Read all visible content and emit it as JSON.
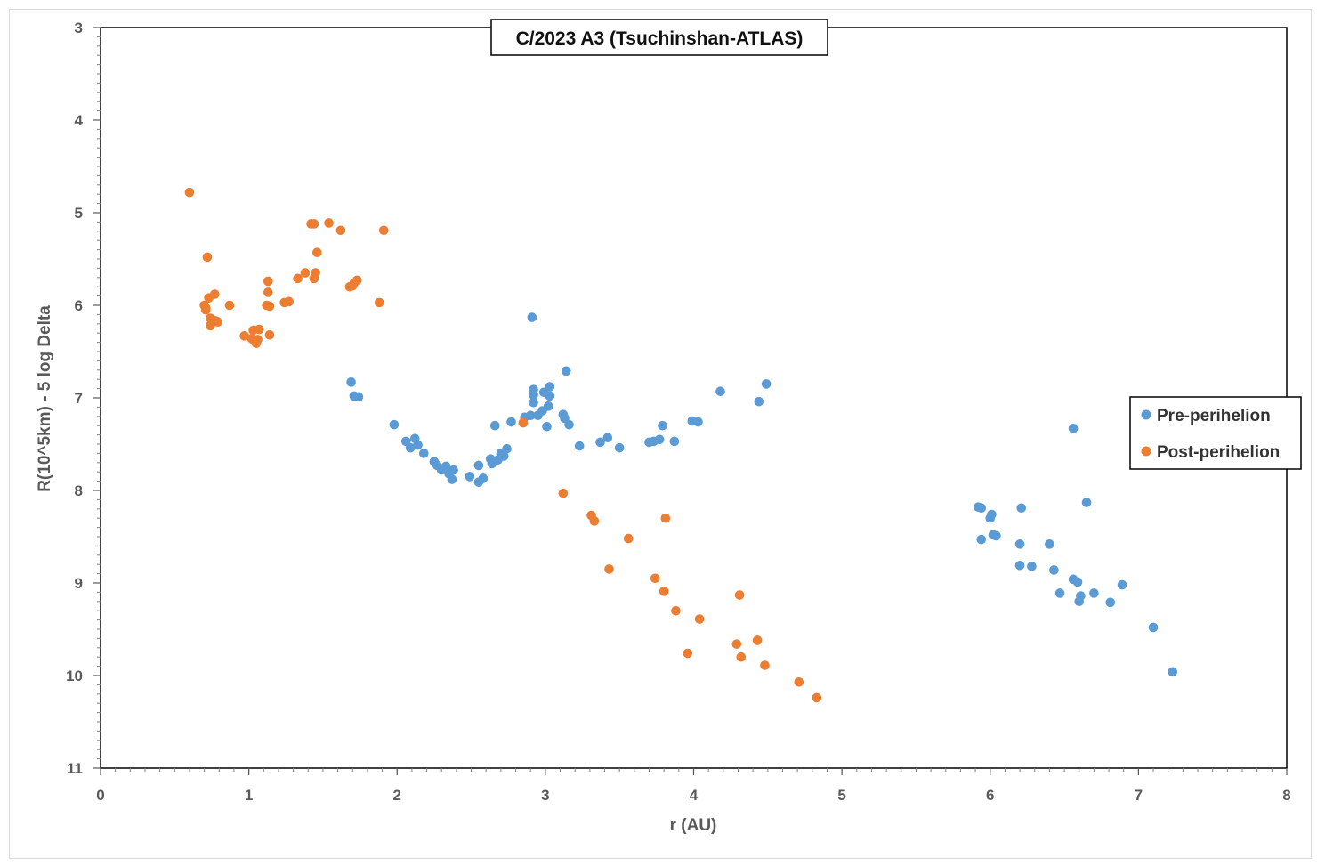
{
  "chart_data": {
    "type": "scatter",
    "title": "C/2023 A3 (Tsuchinshan-ATLAS)",
    "xlabel": "r (AU)",
    "ylabel": "R(10^5km) - 5 log Delta",
    "xlim": [
      0,
      8
    ],
    "ylim": [
      3,
      11
    ],
    "y_reversed": true,
    "x_ticks": [
      "0",
      "1",
      "2",
      "3",
      "4",
      "5",
      "6",
      "7",
      "8"
    ],
    "y_ticks": [
      "3",
      "4",
      "5",
      "6",
      "7",
      "8",
      "9",
      "10",
      "11"
    ],
    "legend_position": "right",
    "series": [
      {
        "name": "Pre-perihelion",
        "color": "#5b9bd5",
        "points": [
          [
            1.69,
            6.83
          ],
          [
            1.71,
            6.98
          ],
          [
            1.74,
            6.99
          ],
          [
            1.98,
            7.29
          ],
          [
            2.06,
            7.47
          ],
          [
            2.09,
            7.54
          ],
          [
            2.12,
            7.44
          ],
          [
            2.14,
            7.51
          ],
          [
            2.18,
            7.6
          ],
          [
            2.25,
            7.69
          ],
          [
            2.27,
            7.73
          ],
          [
            2.3,
            7.78
          ],
          [
            2.33,
            7.74
          ],
          [
            2.35,
            7.82
          ],
          [
            2.37,
            7.88
          ],
          [
            2.38,
            7.78
          ],
          [
            2.49,
            7.85
          ],
          [
            2.55,
            7.73
          ],
          [
            2.55,
            7.91
          ],
          [
            2.58,
            7.87
          ],
          [
            2.63,
            7.66
          ],
          [
            2.64,
            7.71
          ],
          [
            2.66,
            7.3
          ],
          [
            2.68,
            7.67
          ],
          [
            2.7,
            7.6
          ],
          [
            2.72,
            7.63
          ],
          [
            2.74,
            7.55
          ],
          [
            2.77,
            7.26
          ],
          [
            2.86,
            7.21
          ],
          [
            2.9,
            7.19
          ],
          [
            2.91,
            6.13
          ],
          [
            2.92,
            6.91
          ],
          [
            2.92,
            6.97
          ],
          [
            2.92,
            7.05
          ],
          [
            2.95,
            7.19
          ],
          [
            2.98,
            7.14
          ],
          [
            2.99,
            6.94
          ],
          [
            3.01,
            7.31
          ],
          [
            3.02,
            7.09
          ],
          [
            3.03,
            6.88
          ],
          [
            3.03,
            6.98
          ],
          [
            3.12,
            7.18
          ],
          [
            3.13,
            7.22
          ],
          [
            3.14,
            6.71
          ],
          [
            3.16,
            7.29
          ],
          [
            3.23,
            7.52
          ],
          [
            3.37,
            7.48
          ],
          [
            3.42,
            7.43
          ],
          [
            3.5,
            7.54
          ],
          [
            3.7,
            7.48
          ],
          [
            3.73,
            7.47
          ],
          [
            3.77,
            7.45
          ],
          [
            3.79,
            7.3
          ],
          [
            3.87,
            7.47
          ],
          [
            3.99,
            7.25
          ],
          [
            4.03,
            7.26
          ],
          [
            4.18,
            6.93
          ],
          [
            4.44,
            7.04
          ],
          [
            4.49,
            6.85
          ],
          [
            5.92,
            8.18
          ],
          [
            5.94,
            8.19
          ],
          [
            5.94,
            8.53
          ],
          [
            6.0,
            8.3
          ],
          [
            6.01,
            8.26
          ],
          [
            6.02,
            8.48
          ],
          [
            6.04,
            8.49
          ],
          [
            6.2,
            8.81
          ],
          [
            6.2,
            8.58
          ],
          [
            6.21,
            8.19
          ],
          [
            6.28,
            8.82
          ],
          [
            6.4,
            8.58
          ],
          [
            6.43,
            8.86
          ],
          [
            6.47,
            9.11
          ],
          [
            6.56,
            7.33
          ],
          [
            6.56,
            8.96
          ],
          [
            6.59,
            8.99
          ],
          [
            6.6,
            9.2
          ],
          [
            6.61,
            9.14
          ],
          [
            6.65,
            8.13
          ],
          [
            6.7,
            9.11
          ],
          [
            6.81,
            9.21
          ],
          [
            6.89,
            9.02
          ],
          [
            7.1,
            9.48
          ],
          [
            7.23,
            9.96
          ]
        ]
      },
      {
        "name": "Post-perihelion",
        "color": "#ed7d31",
        "points": [
          [
            0.6,
            4.78
          ],
          [
            0.7,
            6.0
          ],
          [
            0.71,
            6.03
          ],
          [
            0.71,
            6.05
          ],
          [
            0.72,
            5.48
          ],
          [
            0.73,
            5.92
          ],
          [
            0.74,
            6.14
          ],
          [
            0.74,
            6.22
          ],
          [
            0.76,
            6.16
          ],
          [
            0.77,
            5.88
          ],
          [
            0.78,
            6.17
          ],
          [
            0.79,
            6.18
          ],
          [
            0.87,
            6.0
          ],
          [
            0.97,
            6.33
          ],
          [
            1.02,
            6.36
          ],
          [
            1.03,
            6.27
          ],
          [
            1.04,
            6.39
          ],
          [
            1.05,
            6.41
          ],
          [
            1.06,
            6.37
          ],
          [
            1.07,
            6.26
          ],
          [
            1.12,
            6.0
          ],
          [
            1.13,
            5.86
          ],
          [
            1.13,
            5.74
          ],
          [
            1.14,
            6.01
          ],
          [
            1.14,
            6.32
          ],
          [
            1.24,
            5.97
          ],
          [
            1.27,
            5.96
          ],
          [
            1.33,
            5.71
          ],
          [
            1.38,
            5.65
          ],
          [
            1.42,
            5.12
          ],
          [
            1.44,
            5.12
          ],
          [
            1.44,
            5.71
          ],
          [
            1.45,
            5.65
          ],
          [
            1.46,
            5.43
          ],
          [
            1.54,
            5.11
          ],
          [
            1.62,
            5.19
          ],
          [
            1.68,
            5.8
          ],
          [
            1.7,
            5.79
          ],
          [
            1.71,
            5.76
          ],
          [
            1.73,
            5.73
          ],
          [
            1.88,
            5.97
          ],
          [
            1.91,
            5.19
          ],
          [
            2.85,
            7.27
          ],
          [
            3.12,
            8.03
          ],
          [
            3.31,
            8.27
          ],
          [
            3.33,
            8.33
          ],
          [
            3.56,
            8.52
          ],
          [
            3.43,
            8.85
          ],
          [
            3.74,
            8.95
          ],
          [
            3.8,
            9.09
          ],
          [
            3.81,
            8.3
          ],
          [
            3.88,
            9.3
          ],
          [
            3.96,
            9.76
          ],
          [
            4.04,
            9.39
          ],
          [
            4.29,
            9.66
          ],
          [
            4.31,
            9.13
          ],
          [
            4.32,
            9.8
          ],
          [
            4.43,
            9.62
          ],
          [
            4.48,
            9.89
          ],
          [
            4.71,
            10.07
          ],
          [
            4.83,
            10.24
          ]
        ]
      }
    ]
  }
}
